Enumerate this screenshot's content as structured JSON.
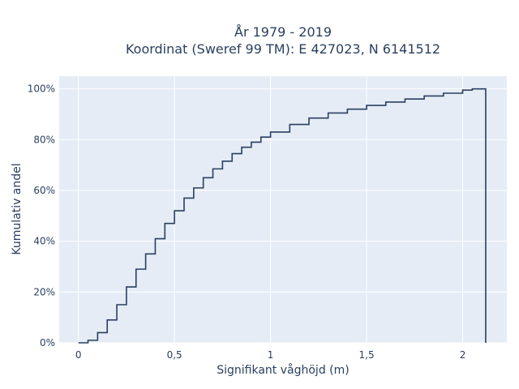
{
  "chart_data": {
    "type": "line",
    "title_lines": [
      "År 1979 - 2019",
      "Koordinat (Sweref 99 TM): E 427023, N 6141512"
    ],
    "xlabel": "Signifikant våghöjd (m)",
    "ylabel": "Kumulativ andel",
    "xlim": [
      -0.1,
      2.23
    ],
    "ylim": [
      0,
      1.05
    ],
    "x_ticks": [
      0,
      0.5,
      1,
      1.5,
      2
    ],
    "x_tick_labels": [
      "0",
      "0,5",
      "1",
      "1,5",
      "2"
    ],
    "y_ticks": [
      0,
      0.2,
      0.4,
      0.6,
      0.8,
      1.0
    ],
    "y_tick_labels": [
      "0%",
      "20%",
      "40%",
      "60%",
      "80%",
      "100%"
    ],
    "grid": true,
    "line_shape": "step",
    "series": [
      {
        "x": [
          0,
          0.05,
          0.1,
          0.15,
          0.2,
          0.25,
          0.3,
          0.35,
          0.4,
          0.45,
          0.5,
          0.55,
          0.6,
          0.65,
          0.7,
          0.75,
          0.8,
          0.85,
          0.9,
          0.95,
          1.0,
          1.1,
          1.2,
          1.3,
          1.4,
          1.5,
          1.6,
          1.7,
          1.8,
          1.9,
          2.0,
          2.05,
          2.12,
          2.12
        ],
        "y": [
          0,
          0.01,
          0.04,
          0.09,
          0.15,
          0.22,
          0.29,
          0.35,
          0.41,
          0.47,
          0.52,
          0.57,
          0.61,
          0.65,
          0.685,
          0.715,
          0.745,
          0.77,
          0.79,
          0.81,
          0.83,
          0.86,
          0.885,
          0.905,
          0.92,
          0.935,
          0.948,
          0.96,
          0.972,
          0.983,
          0.995,
          1.0,
          1.0,
          0
        ]
      }
    ],
    "colors": {
      "plot_bg": "#e5ecf6",
      "grid": "#ffffff",
      "line": "#2a3f5f",
      "text": "#2a3f5f"
    }
  }
}
